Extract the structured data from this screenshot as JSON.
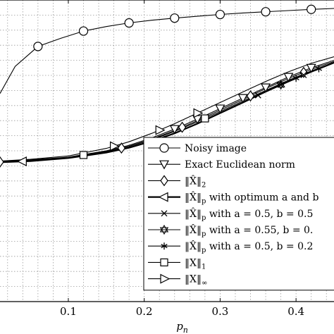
{
  "chart_data": {
    "type": "line",
    "xlabel": "p_n",
    "ylabel": "",
    "xlim": [
      0.01,
      0.45
    ],
    "ylim": [
      0,
      1
    ],
    "x_ticks": [
      0.1,
      0.2,
      0.3,
      0.4
    ],
    "x_tick_labels": [
      "0.1",
      "0.2",
      "0.3",
      "0.4"
    ],
    "grid": true,
    "legend_position": "bottom-right",
    "series": [
      {
        "name": "Noisy image",
        "marker": "circle",
        "x": [
          0.01,
          0.03,
          0.06,
          0.09,
          0.12,
          0.15,
          0.18,
          0.21,
          0.24,
          0.27,
          0.3,
          0.33,
          0.36,
          0.39,
          0.42,
          0.45
        ],
        "y": [
          0.69,
          0.78,
          0.846,
          0.873,
          0.897,
          0.912,
          0.924,
          0.933,
          0.94,
          0.946,
          0.952,
          0.957,
          0.961,
          0.965,
          0.969,
          0.972
        ],
        "marker_x": [
          0.06,
          0.12,
          0.18,
          0.24,
          0.3,
          0.36,
          0.42
        ]
      },
      {
        "name": "Exact Euclidean norm",
        "marker": "triangle-down",
        "x": [
          0.01,
          0.05,
          0.1,
          0.15,
          0.18,
          0.21,
          0.24,
          0.27,
          0.3,
          0.33,
          0.36,
          0.39,
          0.42,
          0.45
        ],
        "y": [
          0.465,
          0.47,
          0.479,
          0.5,
          0.518,
          0.543,
          0.572,
          0.605,
          0.64,
          0.675,
          0.71,
          0.745,
          0.775,
          0.8
        ],
        "marker_x": [
          0.24,
          0.27,
          0.3,
          0.33,
          0.36,
          0.39,
          0.42
        ]
      },
      {
        "name": "‖X̂‖₂",
        "marker": "diamond",
        "x": [
          0.01,
          0.05,
          0.1,
          0.15,
          0.18,
          0.21,
          0.24,
          0.27,
          0.3,
          0.33,
          0.36,
          0.39,
          0.42,
          0.45
        ],
        "y": [
          0.463,
          0.467,
          0.477,
          0.497,
          0.515,
          0.539,
          0.567,
          0.6,
          0.635,
          0.67,
          0.706,
          0.74,
          0.77,
          0.796
        ],
        "marker_x": [
          0.01,
          0.17,
          0.25,
          0.34,
          0.41
        ]
      },
      {
        "name": "‖X̂‖p with optimum a and b",
        "marker": "triangle-left",
        "x": [
          0.01,
          0.05,
          0.1,
          0.15,
          0.18,
          0.21,
          0.24,
          0.27,
          0.3,
          0.33,
          0.36,
          0.39,
          0.42,
          0.45
        ],
        "y": [
          0.462,
          0.466,
          0.476,
          0.494,
          0.51,
          0.532,
          0.558,
          0.59,
          0.625,
          0.66,
          0.696,
          0.73,
          0.762,
          0.792
        ],
        "marker_x": [
          0.04
        ]
      },
      {
        "name": "‖X̂‖p with a = 0.5, b = 0.5",
        "marker": "x",
        "x": [
          0.01,
          0.05,
          0.1,
          0.15,
          0.18,
          0.21,
          0.24,
          0.27,
          0.3,
          0.33,
          0.36,
          0.39,
          0.42,
          0.45
        ],
        "y": [
          0.462,
          0.466,
          0.476,
          0.494,
          0.51,
          0.532,
          0.558,
          0.59,
          0.625,
          0.66,
          0.696,
          0.73,
          0.762,
          0.792
        ],
        "marker_x": [
          0.35,
          0.38,
          0.41
        ]
      },
      {
        "name": "‖X̂‖p with a = 0.55, b = 0.",
        "marker": "star",
        "x": [
          0.01,
          0.05,
          0.1,
          0.15,
          0.18,
          0.21,
          0.24,
          0.27,
          0.3,
          0.33,
          0.36,
          0.39,
          0.42,
          0.45
        ],
        "y": [
          0.462,
          0.466,
          0.476,
          0.494,
          0.51,
          0.532,
          0.558,
          0.59,
          0.625,
          0.66,
          0.696,
          0.73,
          0.762,
          0.792
        ],
        "marker_x": [
          0.38
        ]
      },
      {
        "name": "‖X̂‖p with a = 0.5, b = 0.2",
        "marker": "asterisk",
        "x": [
          0.01,
          0.05,
          0.1,
          0.15,
          0.18,
          0.21,
          0.24,
          0.27,
          0.3,
          0.33,
          0.36,
          0.39,
          0.42,
          0.45
        ],
        "y": [
          0.462,
          0.466,
          0.476,
          0.494,
          0.51,
          0.532,
          0.558,
          0.59,
          0.625,
          0.66,
          0.696,
          0.73,
          0.762,
          0.792
        ],
        "marker_x": [
          0.4,
          0.43
        ]
      },
      {
        "name": "‖X‖₁",
        "marker": "square",
        "x": [
          0.01,
          0.05,
          0.1,
          0.15,
          0.18,
          0.21,
          0.24,
          0.27,
          0.3,
          0.33,
          0.36,
          0.39,
          0.42,
          0.45
        ],
        "y": [
          0.464,
          0.468,
          0.478,
          0.498,
          0.514,
          0.537,
          0.564,
          0.596,
          0.63,
          0.665,
          0.7,
          0.734,
          0.765,
          0.793
        ],
        "marker_x": [
          0.12,
          0.28
        ]
      },
      {
        "name": "‖X‖∞",
        "marker": "triangle-right",
        "x": [
          0.01,
          0.05,
          0.1,
          0.15,
          0.18,
          0.21,
          0.24,
          0.27,
          0.3,
          0.33,
          0.36,
          0.39,
          0.42,
          0.45
        ],
        "y": [
          0.466,
          0.472,
          0.483,
          0.508,
          0.53,
          0.558,
          0.59,
          0.625,
          0.66,
          0.695,
          0.73,
          0.762,
          0.79,
          0.812
        ],
        "marker_x": [
          0.16,
          0.22,
          0.27
        ]
      }
    ]
  },
  "legend": {
    "entries": [
      {
        "pre": "Noisy image",
        "sub": "",
        "post": ""
      },
      {
        "pre": "Exact Euclidean norm",
        "sub": "",
        "post": ""
      },
      {
        "pre": "‖X̂‖",
        "sub": "2",
        "post": ""
      },
      {
        "pre": "‖X̂‖",
        "sub": "p",
        "post": " with optimum a and b"
      },
      {
        "pre": "‖X̂‖",
        "sub": "p",
        "post": " with a = 0.5, b = 0.5"
      },
      {
        "pre": "‖X̂‖",
        "sub": "p",
        "post": " with a = 0.55, b = 0."
      },
      {
        "pre": "‖X̂‖",
        "sub": "p",
        "post": " with a = 0.5, b = 0.2"
      },
      {
        "pre": "‖X‖",
        "sub": "1",
        "post": ""
      },
      {
        "pre": "‖X‖",
        "sub": "∞",
        "post": ""
      }
    ]
  },
  "axes": {
    "xlabel_main": "p",
    "xlabel_sub": "n"
  }
}
